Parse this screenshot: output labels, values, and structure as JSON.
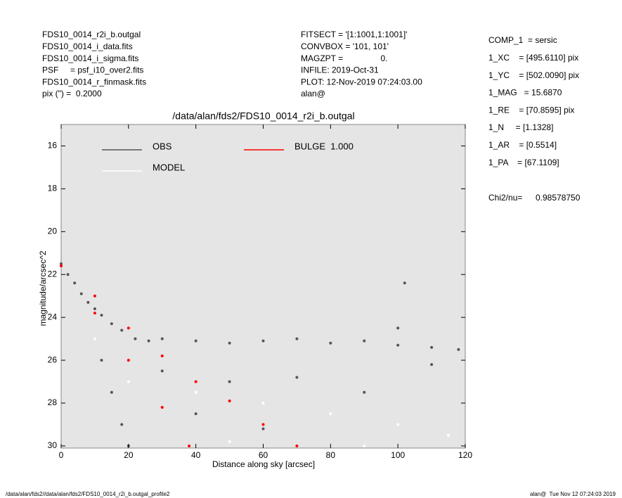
{
  "header": {
    "left": [
      "FDS10_0014_r2i_b.outgal",
      "FDS10_0014_i_data.fits",
      "FDS10_0014_i_sigma.fits",
      "PSF     = psf_i10_over2.fits",
      "FDS10_0014_r_finmask.fits",
      "pix (\") =  0.2000"
    ],
    "center": [
      "FITSECT = '[1:1001,1:1001]'",
      "CONVBOX = '101, 101'",
      "MAGZPT =                0.",
      "INFILE: 2019-Oct-31",
      "PLOT: 12-Nov-2019 07:24:03.00",
      "alan@"
    ],
    "right": [
      "COMP_1  = sersic",
      "1_XC    = [495.6110] pix",
      "1_YC    = [502.0090] pix",
      "1_MAG   = 15.6870",
      "1_RE    = [70.8595] pix",
      "1_N     = [1.1328]",
      "1_AR    = [0.5514]",
      "1_PA    = [67.1109]"
    ],
    "chi2": {
      "label": "Chi2/nu=",
      "value": "0.98578750"
    }
  },
  "footer": {
    "left": "/data/alan/fds2//data/alan/fds2/FDS10_0014_r2i_b.outgal_profile2",
    "right": "alan@  Tue Nov 12 07:24:03 2019"
  },
  "chart_data": {
    "type": "scatter",
    "title": "/data/alan/fds2/FDS10_0014_r2i_b.outgal",
    "x_label": "Distance along sky [arcsec]",
    "y_label": "magnitude/arcsec^2",
    "xlim": [
      0,
      120
    ],
    "ylim": [
      15,
      30.1
    ],
    "y_inverted": true,
    "xticks": [
      0,
      20,
      40,
      60,
      80,
      100,
      120
    ],
    "yticks": [
      16,
      18,
      20,
      22,
      24,
      26,
      28,
      30
    ],
    "background": "#e5e5e5",
    "series": [
      {
        "name": "OBS",
        "color": "#555555",
        "x": [
          0,
          2,
          4,
          6,
          8,
          10,
          12,
          15,
          18,
          22,
          26,
          30,
          40,
          50,
          60,
          70,
          80,
          90,
          100,
          110,
          118,
          12,
          15,
          18,
          20,
          30,
          50,
          70,
          90,
          110,
          40,
          60,
          100,
          102
        ],
        "y": [
          21.5,
          22,
          22.4,
          22.9,
          23.3,
          23.6,
          23.9,
          24.3,
          24.6,
          25,
          25.1,
          25,
          25.1,
          25.2,
          25.1,
          25,
          25.2,
          25.1,
          25.3,
          25.4,
          25.5,
          26,
          27.5,
          29,
          30,
          26.5,
          27,
          26.8,
          27.5,
          26.2,
          28.5,
          29.2,
          24.5,
          22.4
        ]
      },
      {
        "name": "MODEL",
        "color": "#ffffff",
        "x": [
          10,
          20,
          40,
          60,
          80,
          100,
          115,
          50,
          90
        ],
        "y": [
          25,
          27,
          27.5,
          28,
          28.5,
          29,
          29.5,
          29.8,
          30
        ]
      },
      {
        "name": "BULGE  1.000",
        "color": "#ff0000",
        "x": [
          0,
          10,
          20,
          30,
          38,
          20,
          40,
          60,
          70,
          10,
          30,
          50
        ],
        "y": [
          21.6,
          23.8,
          26,
          28.2,
          30,
          24.5,
          27,
          29,
          30,
          23,
          25.8,
          27.9
        ]
      }
    ]
  }
}
